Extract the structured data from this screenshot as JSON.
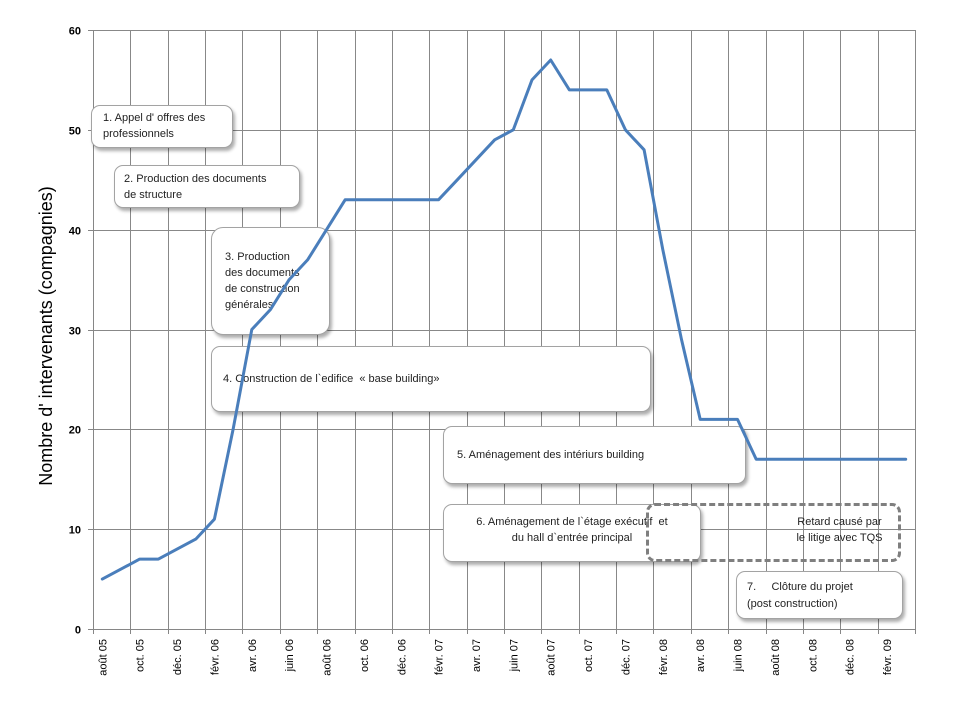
{
  "chart_data": {
    "type": "line",
    "ylabel": "Nombre d' intervenants (compagnies)",
    "ylim": [
      0,
      60
    ],
    "yticks": [
      0,
      10,
      20,
      30,
      40,
      50,
      60
    ],
    "grid": true,
    "legend": "none",
    "categories": [
      "août 05",
      "",
      "oct. 05",
      "",
      "déc. 05",
      "",
      "févr. 06",
      "",
      "avr. 06",
      "",
      "juin 06",
      "",
      "août 06",
      "",
      "oct. 06",
      "",
      "déc. 06",
      "",
      "févr. 07",
      "",
      "avr. 07",
      "",
      "juin 07",
      "",
      "août 07",
      "",
      "oct. 07",
      "",
      "déc. 07",
      "",
      "févr. 08",
      "",
      "avr. 08",
      "",
      "juin 08",
      "",
      "août 08",
      "",
      "oct. 08",
      "",
      "déc. 08",
      "",
      "févr. 09",
      ""
    ],
    "series": [
      {
        "color": "#4a7ebb",
        "values": [
          5,
          6,
          7,
          7,
          8,
          9,
          11,
          20,
          30,
          32,
          35,
          37,
          40,
          43,
          43,
          43,
          43,
          43,
          43,
          45,
          47,
          49,
          50,
          55,
          57,
          54,
          54,
          54,
          50,
          48,
          38,
          29,
          21,
          21,
          21,
          17,
          17,
          17,
          17,
          17,
          17,
          17,
          17,
          17
        ]
      }
    ],
    "annotations": [
      {
        "style": "rounded",
        "lines": [
          "1. Appel d' offres des",
          "professionnels"
        ]
      },
      {
        "style": "rounded",
        "lines": [
          "2. Production des documents",
          "de structure"
        ]
      },
      {
        "style": "rounded",
        "lines": [
          "3. Production",
          "des documents",
          "de construction",
          "générales"
        ]
      },
      {
        "style": "rounded",
        "lines": [
          "4. Construction de l`edifice  « base building»"
        ]
      },
      {
        "style": "rounded",
        "lines": [
          "5. Aménagement des intériurs building"
        ]
      },
      {
        "style": "rounded",
        "lines": [
          "6. Aménagement de l`étage exécutif  et",
          "du hall d`entrée principal"
        ]
      },
      {
        "style": "dashed",
        "lines": [
          "Retard causé par",
          "le litige avec TQS"
        ]
      },
      {
        "style": "rounded",
        "lines": [
          "7.     Clôture du projet",
          "(post construction)"
        ]
      }
    ]
  }
}
